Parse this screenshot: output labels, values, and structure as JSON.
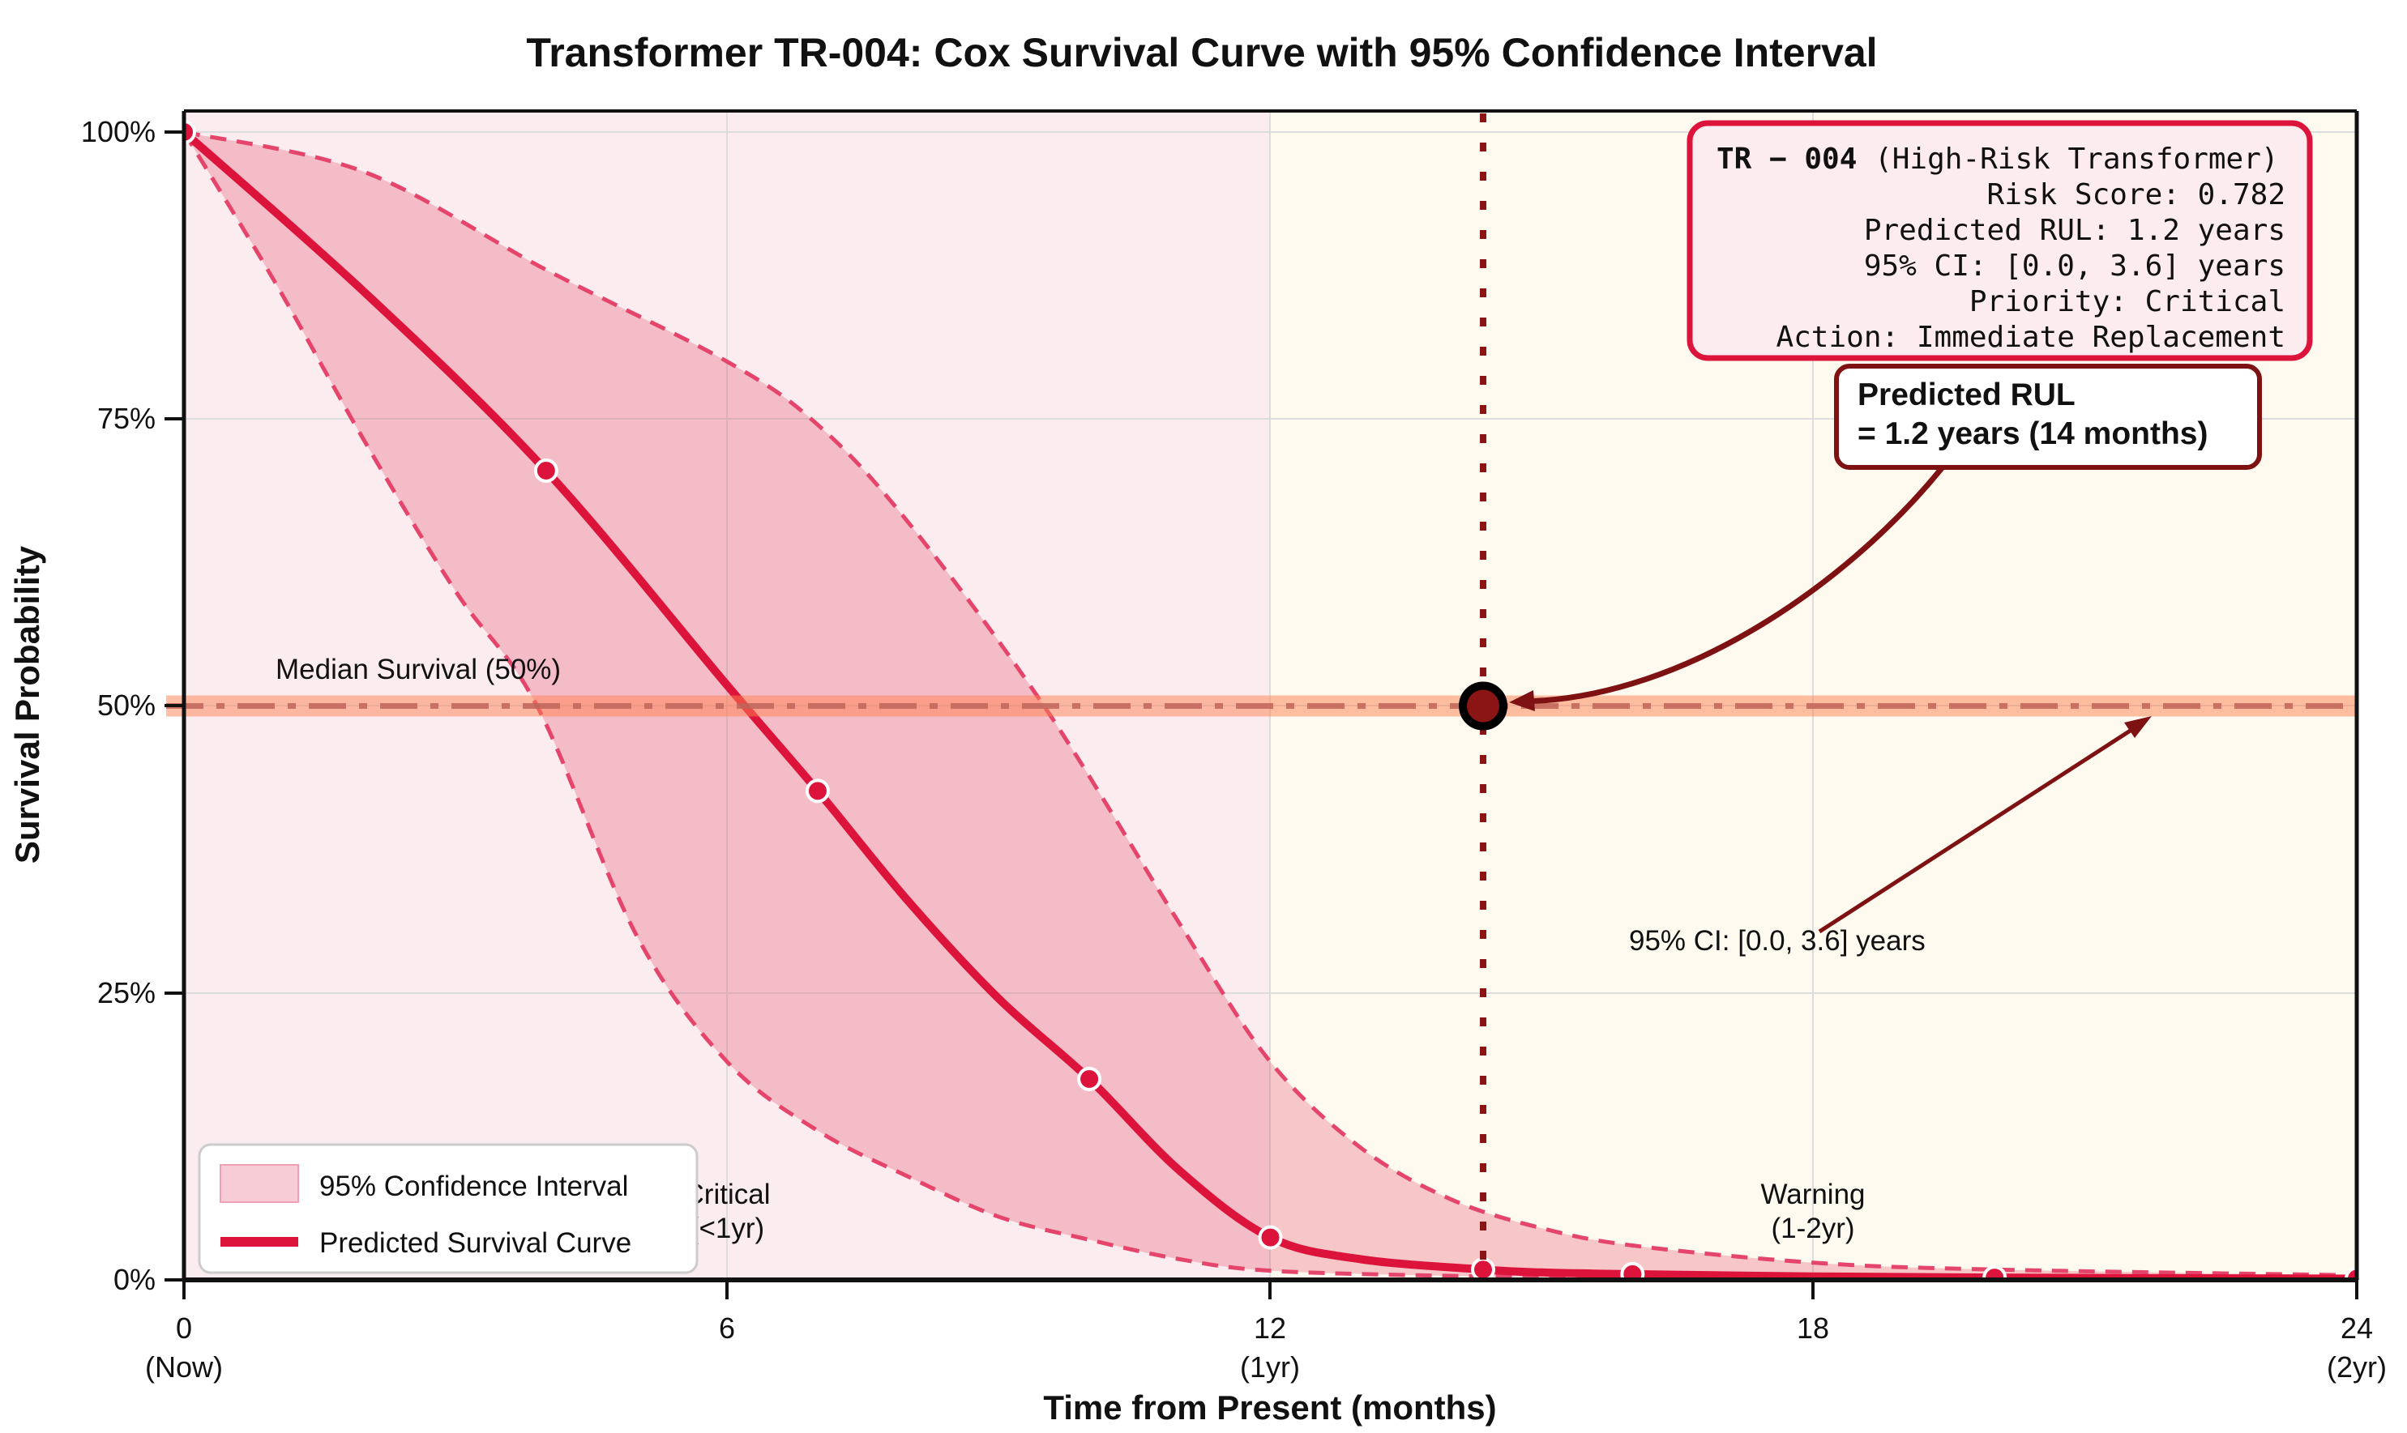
{
  "title": "Transformer TR-004: Cox Survival Curve with 95% Confidence Interval",
  "axes": {
    "xlabel": "Time from Present (months)",
    "ylabel": "Survival Probability",
    "xlim": [
      0,
      24
    ],
    "ylim_pct": [
      0,
      102
    ],
    "grid": true,
    "x_ticks": [
      {
        "value": 0,
        "label": "0",
        "sub": "(Now)"
      },
      {
        "value": 6,
        "label": "6",
        "sub": ""
      },
      {
        "value": 12,
        "label": "12",
        "sub": "(1yr)"
      },
      {
        "value": 18,
        "label": "18",
        "sub": ""
      },
      {
        "value": 24,
        "label": "24",
        "sub": "(2yr)"
      }
    ],
    "y_ticks": [
      {
        "value": 0,
        "label": "0%"
      },
      {
        "value": 25,
        "label": "25%"
      },
      {
        "value": 50,
        "label": "50%"
      },
      {
        "value": 75,
        "label": "75%"
      },
      {
        "value": 100,
        "label": "100%"
      }
    ]
  },
  "chart_data": {
    "type": "line",
    "x_unit": "months",
    "y_unit": "survival_percent",
    "series": [
      {
        "name": "Predicted Survival Curve",
        "points": [
          [
            0,
            100
          ],
          [
            2,
            86
          ],
          [
            4,
            70.5
          ],
          [
            6,
            51.8
          ],
          [
            7,
            42.6
          ],
          [
            8,
            33
          ],
          [
            9,
            24.5
          ],
          [
            10,
            17.5
          ],
          [
            11,
            9.5
          ],
          [
            12,
            3.7
          ],
          [
            13,
            1.8
          ],
          [
            14.35,
            0.9
          ],
          [
            15,
            0.65
          ],
          [
            16,
            0.5
          ],
          [
            18,
            0.3
          ],
          [
            20,
            0.2
          ],
          [
            22,
            0.15
          ],
          [
            24,
            0.1
          ]
        ]
      },
      {
        "name": "95% CI Upper Bound",
        "points": [
          [
            0,
            100
          ],
          [
            2,
            96.5
          ],
          [
            4,
            88
          ],
          [
            6,
            80
          ],
          [
            7,
            74.5
          ],
          [
            8,
            66
          ],
          [
            9.5,
            50
          ],
          [
            11,
            31
          ],
          [
            12,
            19
          ],
          [
            13,
            11.5
          ],
          [
            14,
            7
          ],
          [
            15,
            4.5
          ],
          [
            16,
            3
          ],
          [
            18,
            1.5
          ],
          [
            20,
            0.9
          ],
          [
            24,
            0.4
          ]
        ]
      },
      {
        "name": "95% CI Lower Bound",
        "points": [
          [
            0,
            100
          ],
          [
            1,
            87
          ],
          [
            2,
            73
          ],
          [
            3,
            60
          ],
          [
            3.9,
            50
          ],
          [
            5,
            30
          ],
          [
            6,
            19
          ],
          [
            7,
            13
          ],
          [
            8,
            9
          ],
          [
            9,
            5.5
          ],
          [
            10,
            3.5
          ],
          [
            11,
            1.8
          ],
          [
            12,
            0.8
          ],
          [
            14,
            0.35
          ],
          [
            16,
            0.2
          ],
          [
            18,
            0.12
          ],
          [
            20,
            0.07
          ],
          [
            24,
            0.02
          ]
        ]
      }
    ],
    "curve_markers": [
      [
        0,
        100
      ],
      [
        4,
        70.5
      ],
      [
        7,
        42.6
      ],
      [
        10,
        17.5
      ],
      [
        12,
        3.7
      ],
      [
        14.35,
        0.9
      ],
      [
        16,
        0.5
      ],
      [
        20,
        0.2
      ],
      [
        24,
        0.1
      ]
    ],
    "title": "Transformer TR-004: Cox Survival Curve with 95% Confidence Interval",
    "xlabel": "Time from Present (months)",
    "ylabel": "Survival Probability",
    "legend_position": "lower left"
  },
  "median": {
    "label": "Median Survival (50%)",
    "value_pct": 50,
    "band_color": "#FF7F50",
    "line_color": "#C0655A",
    "label_color": "#2F4F4F"
  },
  "rul": {
    "month": 14.35,
    "vline_color": "#8B1414",
    "marker_fill": "#8B1414",
    "callout_line1": "Predicted RUL",
    "callout_line2": "= 1.2 years (14 months)",
    "ci_note": "95% CI: [0.0, 3.6] years"
  },
  "zones": {
    "critical": {
      "label": "Critical",
      "sub": "(<1yr)",
      "range_months": [
        0,
        12
      ],
      "bg": "#FBECEF",
      "label_color": "#B05050"
    },
    "warning": {
      "label": "Warning",
      "sub": "(1-2yr)",
      "range_months": [
        12,
        24
      ],
      "bg": "#FFFAF0",
      "label_color": "#F7A64B"
    }
  },
  "info_box": {
    "id_bold": "TR − 004",
    "id_rest": " (High-Risk Transformer)",
    "lines": [
      "Risk Score: 0.782",
      "Predicted RUL: 1.2 years",
      "95% CI: [0.0, 3.6] years",
      "Priority: Critical",
      "Action: Immediate Replacement"
    ],
    "bg": "#FDECEF",
    "border": "#DC143C"
  },
  "legend": {
    "items": [
      {
        "label": "95% Confidence Interval",
        "type": "patch",
        "color": "#F7CCD6"
      },
      {
        "label": "Predicted Survival Curve",
        "type": "line",
        "color": "#DC143C"
      }
    ]
  },
  "colors": {
    "curve": "#DC143C",
    "ci_dash": "#E5456B",
    "ci_fill": "#DC143C",
    "dark_red": "#7E1111",
    "grid": "#DDDDDD",
    "spine": "#111111"
  }
}
